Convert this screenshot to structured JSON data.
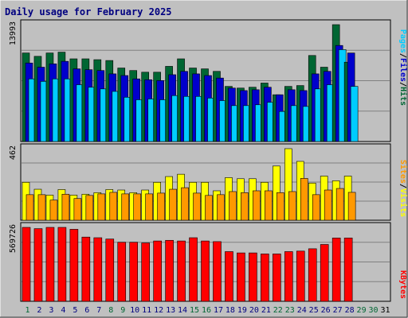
{
  "title": "Daily usage for February 2025",
  "colors": {
    "background": "#c0c0c0",
    "plot_bg": "#c0c0c0",
    "grid": "#808080",
    "hits": "#006633",
    "files": "#0000cc",
    "pages": "#00ccff",
    "visits": "#ffff00",
    "sites": "#ff9900",
    "kbytes": "#ff0000",
    "title_text": "#000080",
    "day_active": "#006633",
    "day_weekday": "#000080",
    "day_inactive": "#000000"
  },
  "legend": {
    "top": [
      "Pages",
      "Files",
      "Hits"
    ],
    "middle": [
      "Sites",
      "Visits"
    ],
    "bottom": [
      "KBytes"
    ],
    "separator": "/"
  },
  "chart_data": [
    {
      "type": "bar",
      "panel": "hits-files-pages",
      "axis_max_label": "13993",
      "ylim": [
        0,
        13993
      ],
      "x": [
        1,
        2,
        3,
        4,
        5,
        6,
        7,
        8,
        9,
        10,
        11,
        12,
        13,
        14,
        15,
        16,
        17,
        18,
        19,
        20,
        21,
        22,
        23,
        24,
        25,
        26,
        27,
        28
      ],
      "series": [
        {
          "name": "Hits",
          "color": "#006633",
          "values": [
            10600,
            10200,
            10600,
            10700,
            9900,
            9900,
            9800,
            9700,
            8800,
            8500,
            8300,
            8300,
            9000,
            9900,
            8800,
            8700,
            8400,
            6600,
            6400,
            6500,
            7000,
            5600,
            6600,
            6700,
            10300,
            8900,
            13993,
            9500
          ]
        },
        {
          "name": "Files",
          "color": "#0000cc",
          "values": [
            9400,
            8900,
            9300,
            9600,
            8700,
            8600,
            8500,
            8100,
            7900,
            7500,
            7400,
            7300,
            8000,
            8400,
            8100,
            7900,
            7600,
            6400,
            6100,
            6200,
            6500,
            5600,
            6200,
            6100,
            8100,
            8400,
            11500,
            10600
          ]
        },
        {
          "name": "Pages",
          "color": "#00ccff",
          "values": [
            7500,
            7200,
            7500,
            7500,
            6800,
            6500,
            6300,
            6000,
            5300,
            5000,
            5100,
            5000,
            5500,
            5400,
            5400,
            5200,
            4900,
            4300,
            4300,
            4400,
            4700,
            3600,
            4300,
            4200,
            6300,
            6800,
            11000,
            6600
          ]
        }
      ]
    },
    {
      "type": "bar",
      "panel": "visits-sites",
      "axis_max_label": "462",
      "ylim": [
        0,
        462
      ],
      "x": [
        1,
        2,
        3,
        4,
        5,
        6,
        7,
        8,
        9,
        10,
        11,
        12,
        13,
        14,
        15,
        16,
        17,
        18,
        19,
        20,
        21,
        22,
        23,
        24,
        25,
        26,
        27,
        28
      ],
      "series": [
        {
          "name": "Visits",
          "color": "#ffff00",
          "values": [
            245,
            200,
            162,
            198,
            162,
            168,
            178,
            198,
            195,
            178,
            195,
            245,
            282,
            297,
            245,
            245,
            190,
            275,
            268,
            268,
            245,
            350,
            462,
            380,
            240,
            285,
            255,
            285
          ]
        },
        {
          "name": "Sites",
          "color": "#ff9900",
          "values": [
            165,
            165,
            130,
            168,
            140,
            160,
            170,
            180,
            170,
            170,
            170,
            175,
            200,
            210,
            175,
            160,
            165,
            185,
            178,
            190,
            190,
            178,
            185,
            270,
            165,
            195,
            205,
            180
          ]
        }
      ]
    },
    {
      "type": "bar",
      "panel": "kbytes",
      "axis_max_label": "569726",
      "ylim": [
        0,
        569726
      ],
      "x": [
        1,
        2,
        3,
        4,
        5,
        6,
        7,
        8,
        9,
        10,
        11,
        12,
        13,
        14,
        15,
        16,
        17,
        18,
        19,
        20,
        21,
        22,
        23,
        24,
        25,
        26,
        27,
        28
      ],
      "series": [
        {
          "name": "KBytes",
          "color": "#ff0000",
          "values": [
            569726,
            560000,
            569726,
            569726,
            555000,
            495000,
            490000,
            480000,
            455000,
            455000,
            450000,
            465000,
            470000,
            465000,
            490000,
            465000,
            460000,
            383000,
            373000,
            373000,
            365000,
            365000,
            383000,
            387000,
            405000,
            438000,
            488000,
            488000
          ]
        }
      ]
    }
  ],
  "days": [
    "1",
    "2",
    "3",
    "4",
    "5",
    "6",
    "7",
    "8",
    "9",
    "10",
    "11",
    "12",
    "13",
    "14",
    "15",
    "16",
    "17",
    "18",
    "19",
    "20",
    "21",
    "22",
    "23",
    "24",
    "25",
    "26",
    "27",
    "28",
    "29",
    "30",
    "31"
  ],
  "day_classes": [
    "active",
    "weekday",
    "weekday",
    "weekday",
    "weekday",
    "weekday",
    "weekday",
    "active",
    "active",
    "weekday",
    "weekday",
    "weekday",
    "weekday",
    "weekday",
    "active",
    "active",
    "weekday",
    "weekday",
    "weekday",
    "weekday",
    "weekday",
    "active",
    "active",
    "weekday",
    "weekday",
    "weekday",
    "weekday",
    "weekday",
    "active",
    "active",
    "inactive"
  ]
}
